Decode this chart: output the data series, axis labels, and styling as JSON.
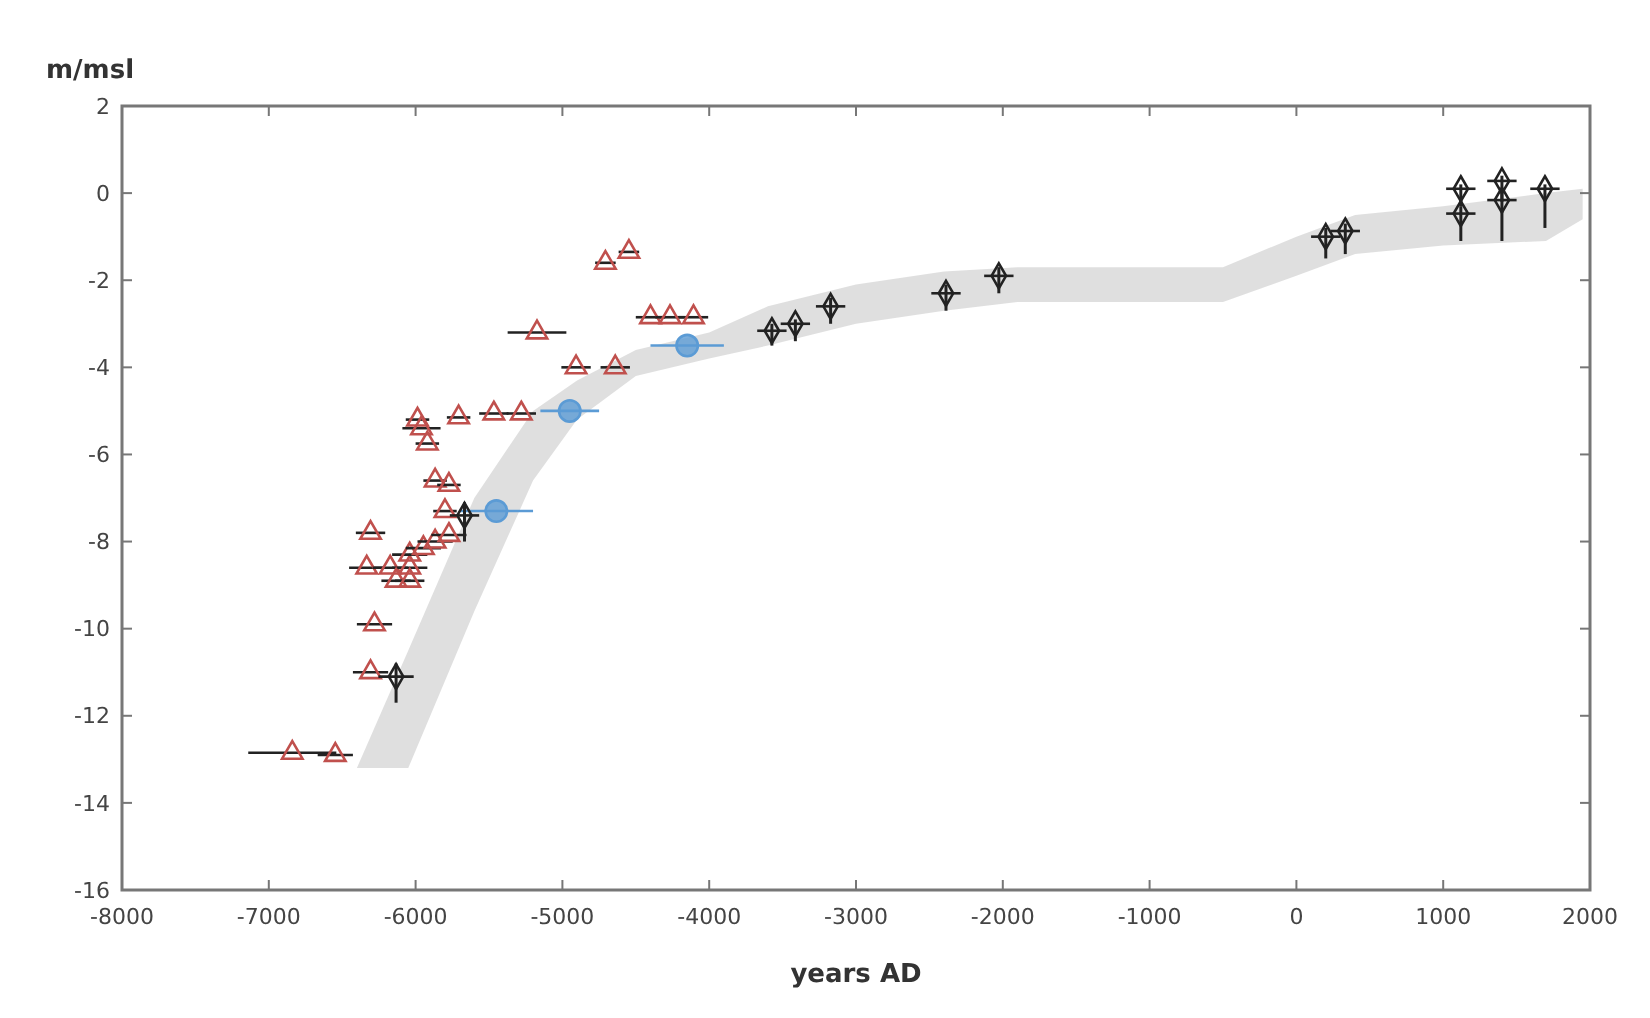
{
  "chart_data": {
    "type": "scatter",
    "xlabel": "years AD",
    "ylabel": "m/msl",
    "xlim": [
      -8000,
      2000
    ],
    "ylim": [
      -16,
      2
    ],
    "xticks": [
      -8000,
      -7000,
      -6000,
      -5000,
      -4000,
      -3000,
      -2000,
      -1000,
      0,
      1000,
      2000
    ],
    "yticks": [
      -16,
      -14,
      -12,
      -10,
      -8,
      -6,
      -4,
      -2,
      0,
      2
    ],
    "grid": false,
    "series": [
      {
        "type": "line",
        "color": "#d9d9d9",
        "x": [
          -6400,
          -6050,
          -5600,
          -5200,
          -4900,
          -4500,
          -4000,
          -3600,
          -3000,
          -2400,
          -1900,
          -500,
          0,
          400,
          1000,
          1700,
          1950
        ],
        "values": [
          null,
          null,
          null,
          null,
          null,
          null,
          null,
          null,
          null,
          null,
          null,
          null,
          null,
          null,
          null,
          null,
          null
        ],
        "lower": [
          -13.2,
          -13.2,
          -9.6,
          -6.6,
          -5.2,
          -4.2,
          -3.8,
          -3.5,
          -3.0,
          -2.7,
          -2.5,
          -2.5,
          -1.9,
          -1.4,
          -1.2,
          -1.1,
          -0.6
        ],
        "upper": [
          -13.2,
          -10.5,
          -7.0,
          -5.0,
          -4.3,
          -3.6,
          -3.2,
          -2.6,
          -2.1,
          -1.8,
          -1.7,
          -1.7,
          -1.0,
          -0.5,
          -0.3,
          0.0,
          0.1
        ]
      },
      {
        "color": "#5b9bd5",
        "marker": "circle",
        "x": [
          -4950,
          -4150,
          -5450
        ],
        "values": [
          -5.0,
          -3.5,
          -7.3
        ],
        "xerrors": [
          200,
          250,
          250
        ]
      },
      {
        "color": "#c0504d",
        "marker": "triangle",
        "x": [
          -4707,
          -4547,
          -4400,
          -4267,
          -4107,
          -5173,
          -4907,
          -4640,
          -5987,
          -5960,
          -5707,
          -5467,
          -5280,
          -5920,
          -5867,
          -5773,
          -5800,
          -6307,
          -6333,
          -6173,
          -6040,
          -6040,
          -5947,
          -5867,
          -5773,
          -6133,
          -6040,
          -6280,
          -6307,
          -6840,
          -6547
        ],
        "values": [
          -1.6,
          -1.35,
          -2.85,
          -2.85,
          -2.85,
          -3.2,
          -4.0,
          -4.0,
          -5.2,
          -5.4,
          -5.15,
          -5.06,
          -5.06,
          -5.75,
          -6.6,
          -6.7,
          -7.3,
          -7.8,
          -8.6,
          -8.6,
          -8.6,
          -8.3,
          -8.15,
          -8.0,
          -7.85,
          -8.9,
          -8.9,
          -9.9,
          -11.0,
          -12.85,
          -12.9
        ],
        "xerrors": [
          70,
          70,
          100,
          100,
          100,
          200,
          100,
          100,
          80,
          130,
          80,
          100,
          100,
          80,
          80,
          80,
          80,
          100,
          120,
          120,
          120,
          120,
          120,
          120,
          120,
          100,
          100,
          120,
          120,
          300,
          120
        ]
      },
      {
        "color": "#222222",
        "marker": "diamond",
        "x": [
          -6133,
          -5667,
          -3573,
          -3413,
          -3173,
          -2387,
          -2027,
          200,
          333,
          1120,
          1120,
          1400,
          1400,
          1693
        ],
        "values": [
          -11.1,
          -7.4,
          -3.16,
          -3.0,
          -2.6,
          -2.3,
          -1.9,
          -1.0,
          -0.87,
          -0.47,
          0.1,
          0.28,
          -0.16,
          0.1
        ],
        "xerrors": [
          120,
          100,
          100,
          100,
          100,
          100,
          100,
          100,
          100,
          100,
          100,
          100,
          100,
          100
        ],
        "errors": [
          [
            -11.7,
            -10.8
          ],
          [
            -8.0,
            -7.1
          ],
          [
            -3.5,
            -3.0
          ],
          [
            -3.4,
            -2.9
          ],
          [
            -3.0,
            -2.4
          ],
          [
            -2.7,
            -2.1
          ],
          [
            -2.3,
            -1.7
          ],
          [
            -1.5,
            -0.8
          ],
          [
            -1.4,
            -0.7
          ],
          [
            -1.1,
            -0.3
          ],
          [
            -0.3,
            0.2
          ],
          [
            -0.2,
            0.4
          ],
          [
            -1.1,
            0.0
          ],
          [
            -0.8,
            0.2
          ]
        ]
      }
    ]
  }
}
